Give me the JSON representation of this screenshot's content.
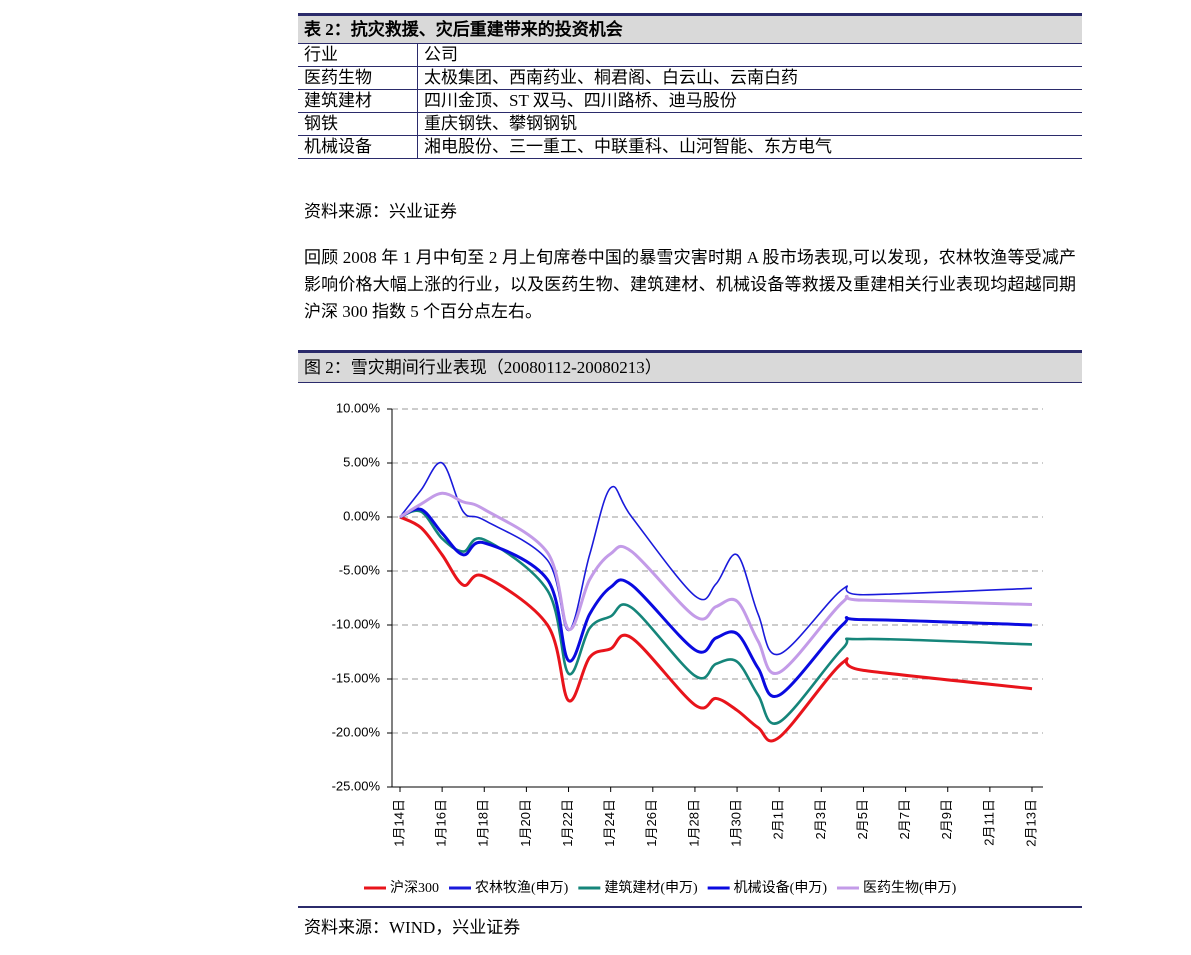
{
  "table": {
    "title": "表 2：抗灾救援、灾后重建带来的投资机会",
    "header": [
      "行业",
      "公司"
    ],
    "rows": [
      [
        "医药生物",
        "太极集团、西南药业、桐君阁、白云山、云南白药"
      ],
      [
        "建筑建材",
        "四川金顶、ST 双马、四川路桥、迪马股份"
      ],
      [
        "钢铁",
        "重庆钢铁、攀钢钢钒"
      ],
      [
        "机械设备",
        "湘电股份、三一重工、中联重科、山河智能、东方电气"
      ]
    ],
    "source": "资料来源：兴业证券"
  },
  "paragraph": "回顾 2008 年 1 月中旬至 2 月上旬席卷中国的暴雪灾害时期 A 股市场表现,可以发现，农林牧渔等受减产影响价格大幅上涨的行业，以及医药生物、建筑建材、机械设备等救援及重建相关行业表现均超越同期沪深 300 指数 5 个百分点左右。",
  "figure": {
    "title": "图 2：雪灾期间行业表现（20080112-20080213）",
    "source": "资料来源：WIND，兴业证券"
  },
  "chart_data": {
    "type": "line",
    "x": [
      "1月14日",
      "1月15日",
      "1月16日",
      "1月17日",
      "1月18日",
      "1月21日",
      "1月22日",
      "1月23日",
      "1月24日",
      "1月25日",
      "1月28日",
      "1月29日",
      "1月30日",
      "1月31日",
      "2月1日",
      "2月4日",
      "2月5日",
      "2月13日"
    ],
    "xticks": [
      "1月14日",
      "1月16日",
      "1月18日",
      "1月20日",
      "1月22日",
      "1月24日",
      "1月26日",
      "1月28日",
      "1月30日",
      "2月1日",
      "2月3日",
      "2月5日",
      "2月7日",
      "2月9日",
      "2月11日",
      "2月13日"
    ],
    "ylim": [
      -25,
      10
    ],
    "yticks": [
      {
        "value": 10,
        "label": "10.00%"
      },
      {
        "value": 5,
        "label": "5.00%"
      },
      {
        "value": 0,
        "label": "0.00%"
      },
      {
        "value": -5,
        "label": "-5.00%"
      },
      {
        "value": -10,
        "label": "-10.00%"
      },
      {
        "value": -15,
        "label": "-15.00%"
      },
      {
        "value": -20,
        "label": "-20.00%"
      },
      {
        "value": -25,
        "label": "-25.00%"
      }
    ],
    "grid": true,
    "series": [
      {
        "name": "沪深300",
        "color": "#e8141b",
        "values": [
          0,
          -1.0,
          -3.5,
          -6.3,
          -5.5,
          -10.0,
          -17.0,
          -13.0,
          -12.2,
          -11.2,
          -17.4,
          -16.8,
          -17.9,
          -19.5,
          -20.4,
          -13.5,
          -14.2,
          -15.9
        ]
      },
      {
        "name": "农林牧渔(申万)",
        "color": "#1a1adb",
        "values": [
          0,
          2.5,
          5.0,
          0.5,
          -0.3,
          -4.0,
          -10.5,
          -3.5,
          2.7,
          0.0,
          -7.3,
          -6.2,
          -3.5,
          -9.0,
          -12.7,
          -6.7,
          -7.2,
          -6.6
        ]
      },
      {
        "name": "建筑建材(申万)",
        "color": "#15857a",
        "values": [
          0,
          0.5,
          -2.0,
          -3.2,
          -2.1,
          -6.8,
          -14.5,
          -10.3,
          -9.2,
          -8.4,
          -14.7,
          -13.6,
          -13.4,
          -16.5,
          -19.0,
          -12.2,
          -11.3,
          -11.8
        ]
      },
      {
        "name": "机械设备(申万)",
        "color": "#0a0ae0",
        "values": [
          0,
          0.7,
          -1.5,
          -3.5,
          -2.4,
          -5.8,
          -13.3,
          -9.0,
          -6.5,
          -6.3,
          -12.3,
          -11.2,
          -10.8,
          -14.0,
          -16.5,
          -10.0,
          -9.5,
          -10.0
        ]
      },
      {
        "name": "医药生物(申万)",
        "color": "#c39be8",
        "values": [
          0,
          1.2,
          2.2,
          1.4,
          0.7,
          -3.3,
          -10.4,
          -5.8,
          -3.4,
          -3.2,
          -9.2,
          -8.3,
          -7.8,
          -11.5,
          -14.4,
          -7.9,
          -7.7,
          -8.1
        ]
      }
    ]
  }
}
